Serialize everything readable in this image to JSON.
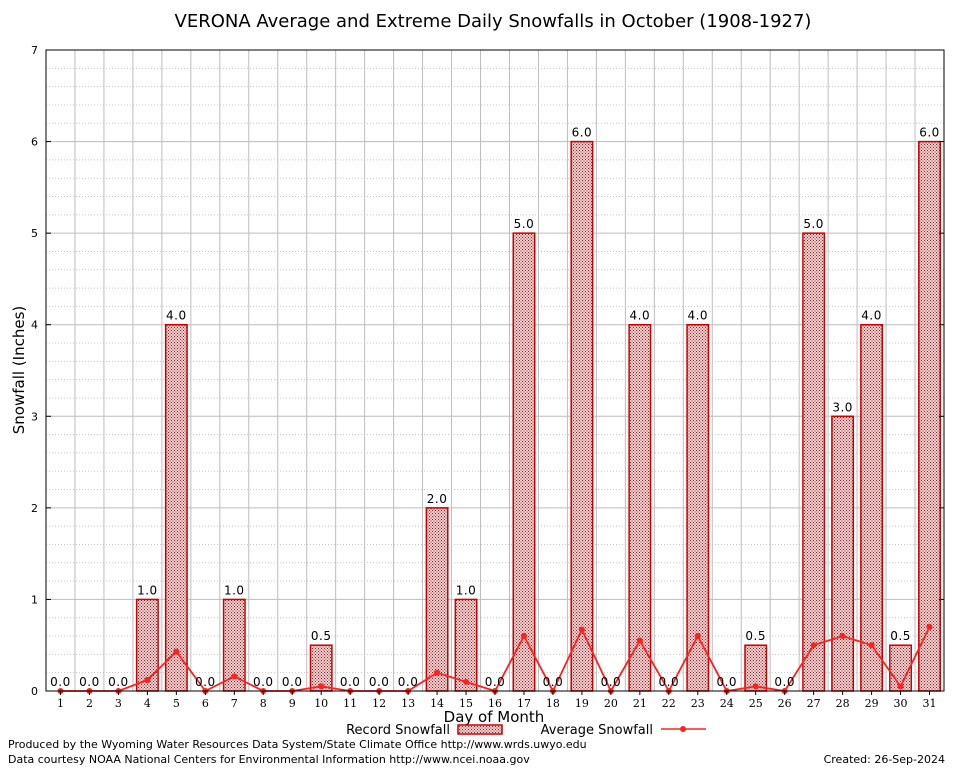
{
  "chart_data": {
    "type": "bar",
    "title": "VERONA Average and Extreme Daily Snowfalls in October (1908-1927)",
    "xlabel": "Day of Month",
    "ylabel": "Snowfall (Inches)",
    "ylim": [
      0,
      7
    ],
    "yticks": [
      0,
      1,
      2,
      3,
      4,
      5,
      6,
      7
    ],
    "grid": true,
    "legend_position": "bottom",
    "categories": [
      "1",
      "2",
      "3",
      "4",
      "5",
      "6",
      "7",
      "8",
      "9",
      "10",
      "11",
      "12",
      "13",
      "14",
      "15",
      "16",
      "17",
      "18",
      "19",
      "20",
      "21",
      "22",
      "23",
      "24",
      "25",
      "26",
      "27",
      "28",
      "29",
      "30",
      "31"
    ],
    "series": [
      {
        "name": "Record Snowfall",
        "type": "bar",
        "color": "#cc0000",
        "fill": "#d9a8a8",
        "values": [
          0,
          0,
          0,
          1,
          4,
          0,
          1,
          0,
          0,
          0.5,
          0,
          0,
          0,
          2,
          1,
          0,
          5,
          0,
          6,
          0,
          4,
          0,
          4,
          0,
          0.5,
          0,
          5,
          3,
          4,
          0.5,
          6
        ],
        "labels": [
          "0.0",
          "0.0",
          "0.0",
          "1.0",
          "4.0",
          "0.0",
          "1.0",
          "0.0",
          "0.0",
          "0.5",
          "0.0",
          "0.0",
          "0.0",
          "2.0",
          "1.0",
          "0.0",
          "5.0",
          "0.0",
          "6.0",
          "0.0",
          "4.0",
          "0.0",
          "4.0",
          "0.0",
          "0.5",
          "0.0",
          "5.0",
          "3.0",
          "4.0",
          "0.5",
          "6.0"
        ]
      },
      {
        "name": "Average Snowfall",
        "type": "line",
        "color": "#ff2020",
        "values": [
          0,
          0,
          0,
          0.12,
          0.43,
          0,
          0.16,
          0,
          0,
          0.05,
          0,
          0,
          0,
          0.2,
          0.1,
          0,
          0.6,
          0,
          0.67,
          0,
          0.55,
          0,
          0.6,
          0,
          0.05,
          0,
          0.5,
          0.6,
          0.5,
          0.05,
          0.7
        ]
      }
    ]
  },
  "footer": {
    "credit1": "Produced by the Wyoming Water Resources Data System/State Climate Office http://www.wrds.uwyo.edu",
    "credit2": "Data courtesy NOAA National Centers for Environmental Information http://www.ncei.noaa.gov",
    "created": "Created:  26-Sep-2024"
  }
}
